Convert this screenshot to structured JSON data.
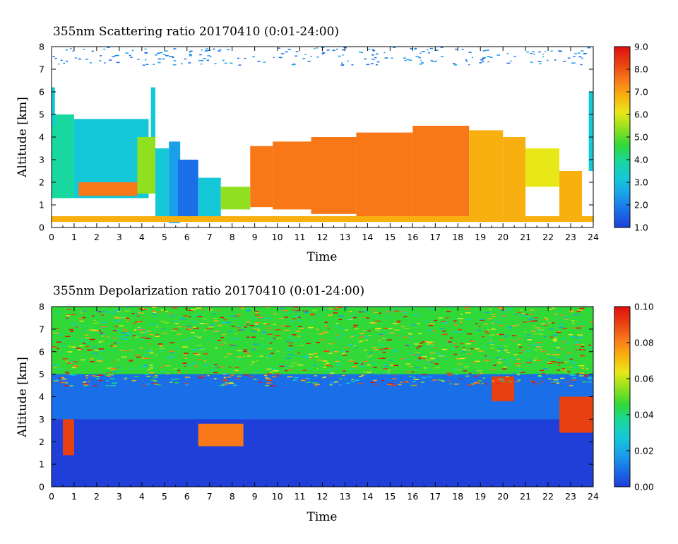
{
  "colormap": [
    "#1f3fd8",
    "#1a6ee8",
    "#1aa0e8",
    "#14c8d8",
    "#18d8a0",
    "#30d838",
    "#90e020",
    "#e8e818",
    "#f8b010",
    "#f87818",
    "#e84010",
    "#e01010"
  ],
  "chart_data": [
    {
      "type": "heatmap",
      "title": "355nm Scattering ratio  20170410 (0:01-24:00)",
      "xlabel": "Time",
      "ylabel": "Altitude [km]",
      "xlim": [
        0,
        24
      ],
      "ylim": [
        0,
        8
      ],
      "x_ticks": [
        "0",
        "1",
        "2",
        "3",
        "4",
        "5",
        "6",
        "7",
        "8",
        "9",
        "10",
        "11",
        "12",
        "13",
        "14",
        "15",
        "16",
        "17",
        "18",
        "19",
        "20",
        "21",
        "22",
        "23",
        "24"
      ],
      "y_ticks": [
        "0",
        "1",
        "2",
        "3",
        "4",
        "5",
        "6",
        "7",
        "8"
      ],
      "colorbar": {
        "min": 1.0,
        "max": 9.0,
        "labels": [
          "1.0",
          "2.0",
          "3.0",
          "4.0",
          "5.0",
          "6.0",
          "7.0",
          "8.0",
          "9.0"
        ]
      },
      "background": "white",
      "regions": [
        {
          "t0": 0.0,
          "t1": 1.0,
          "z0": 1.3,
          "z1": 5.0,
          "value": 4.0
        },
        {
          "t0": 0.0,
          "t1": 0.15,
          "z0": 4.5,
          "z1": 6.2,
          "value": 3.0
        },
        {
          "t0": 1.0,
          "t1": 4.3,
          "z0": 1.3,
          "z1": 4.8,
          "value": 3.5
        },
        {
          "t0": 1.2,
          "t1": 3.8,
          "z0": 1.4,
          "z1": 2.0,
          "value": 7.5
        },
        {
          "t0": 3.8,
          "t1": 4.6,
          "z0": 1.5,
          "z1": 4.0,
          "value": 5.0
        },
        {
          "t0": 4.4,
          "t1": 4.6,
          "z0": 4.0,
          "z1": 6.2,
          "value": 3.0
        },
        {
          "t0": 4.6,
          "t1": 5.2,
          "z0": 0.5,
          "z1": 3.5,
          "value": 3.0
        },
        {
          "t0": 5.2,
          "t1": 5.7,
          "z0": 0.2,
          "z1": 3.8,
          "value": 2.5
        },
        {
          "t0": 5.6,
          "t1": 6.5,
          "z0": 0.3,
          "z1": 3.0,
          "value": 2.0
        },
        {
          "t0": 6.5,
          "t1": 7.5,
          "z0": 0.3,
          "z1": 2.2,
          "value": 3.0
        },
        {
          "t0": 7.5,
          "t1": 8.8,
          "z0": 0.8,
          "z1": 1.8,
          "value": 5.0
        },
        {
          "t0": 8.8,
          "t1": 9.8,
          "z0": 0.9,
          "z1": 3.6,
          "value": 7.0
        },
        {
          "t0": 9.8,
          "t1": 11.5,
          "z0": 0.8,
          "z1": 3.8,
          "value": 7.5
        },
        {
          "t0": 11.5,
          "t1": 13.5,
          "z0": 0.6,
          "z1": 4.0,
          "value": 7.0
        },
        {
          "t0": 13.5,
          "t1": 16.0,
          "z0": 0.5,
          "z1": 4.2,
          "value": 7.5
        },
        {
          "t0": 16.0,
          "t1": 18.5,
          "z0": 0.5,
          "z1": 4.5,
          "value": 7.0
        },
        {
          "t0": 18.5,
          "t1": 20.0,
          "z0": 0.5,
          "z1": 4.3,
          "value": 6.5
        },
        {
          "t0": 20.0,
          "t1": 21.0,
          "z0": 0.5,
          "z1": 4.0,
          "value": 6.5
        },
        {
          "t0": 21.0,
          "t1": 22.5,
          "z0": 1.8,
          "z1": 3.5,
          "value": 6.0
        },
        {
          "t0": 22.5,
          "t1": 23.5,
          "z0": 0.3,
          "z1": 2.5,
          "value": 6.5
        },
        {
          "t0": 23.8,
          "t1": 24.0,
          "z0": 2.5,
          "z1": 6.0,
          "value": 3.0
        },
        {
          "t0": 0.0,
          "t1": 24.0,
          "z0": 0.25,
          "z1": 0.5,
          "value": 6.5
        }
      ]
    },
    {
      "type": "heatmap",
      "title": "355nm Depolarization ratio  20170410 (0:01-24:00)",
      "xlabel": "Time",
      "ylabel": "Altitude [km]",
      "xlim": [
        0,
        24
      ],
      "ylim": [
        0,
        8
      ],
      "x_ticks": [
        "0",
        "1",
        "2",
        "3",
        "4",
        "5",
        "6",
        "7",
        "8",
        "9",
        "10",
        "11",
        "12",
        "13",
        "14",
        "15",
        "16",
        "17",
        "18",
        "19",
        "20",
        "21",
        "22",
        "23",
        "24"
      ],
      "y_ticks": [
        "0",
        "1",
        "2",
        "3",
        "4",
        "5",
        "6",
        "7",
        "8"
      ],
      "colorbar": {
        "min": 0.0,
        "max": 0.1,
        "labels": [
          "0.00",
          "0.02",
          "0.04",
          "0.06",
          "0.08",
          "0.10"
        ]
      },
      "background": "blue",
      "regions": [
        {
          "t0": 0.0,
          "t1": 24.0,
          "z0": 0.0,
          "z1": 3.0,
          "value": 0.004
        },
        {
          "t0": 0.0,
          "t1": 24.0,
          "z0": 3.0,
          "z1": 5.0,
          "value": 0.015
        },
        {
          "t0": 0.0,
          "t1": 24.0,
          "z0": 5.0,
          "z1": 8.0,
          "value": 0.045
        },
        {
          "t0": 0.5,
          "t1": 1.0,
          "z0": 1.4,
          "z1": 3.0,
          "value": 0.09
        },
        {
          "t0": 6.5,
          "t1": 8.5,
          "z0": 1.8,
          "z1": 2.8,
          "value": 0.08
        },
        {
          "t0": 19.5,
          "t1": 20.5,
          "z0": 3.8,
          "z1": 4.9,
          "value": 0.09
        },
        {
          "t0": 22.5,
          "t1": 24.0,
          "z0": 2.4,
          "z1": 4.0,
          "value": 0.09
        }
      ]
    }
  ]
}
